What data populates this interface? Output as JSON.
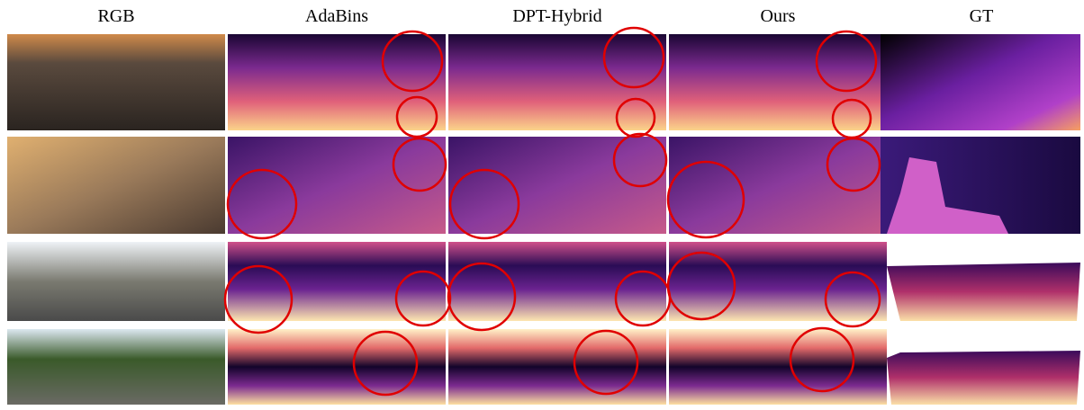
{
  "columns": [
    "RGB",
    "AdaBins",
    "DPT-Hybrid",
    "Ours",
    "GT"
  ]
}
